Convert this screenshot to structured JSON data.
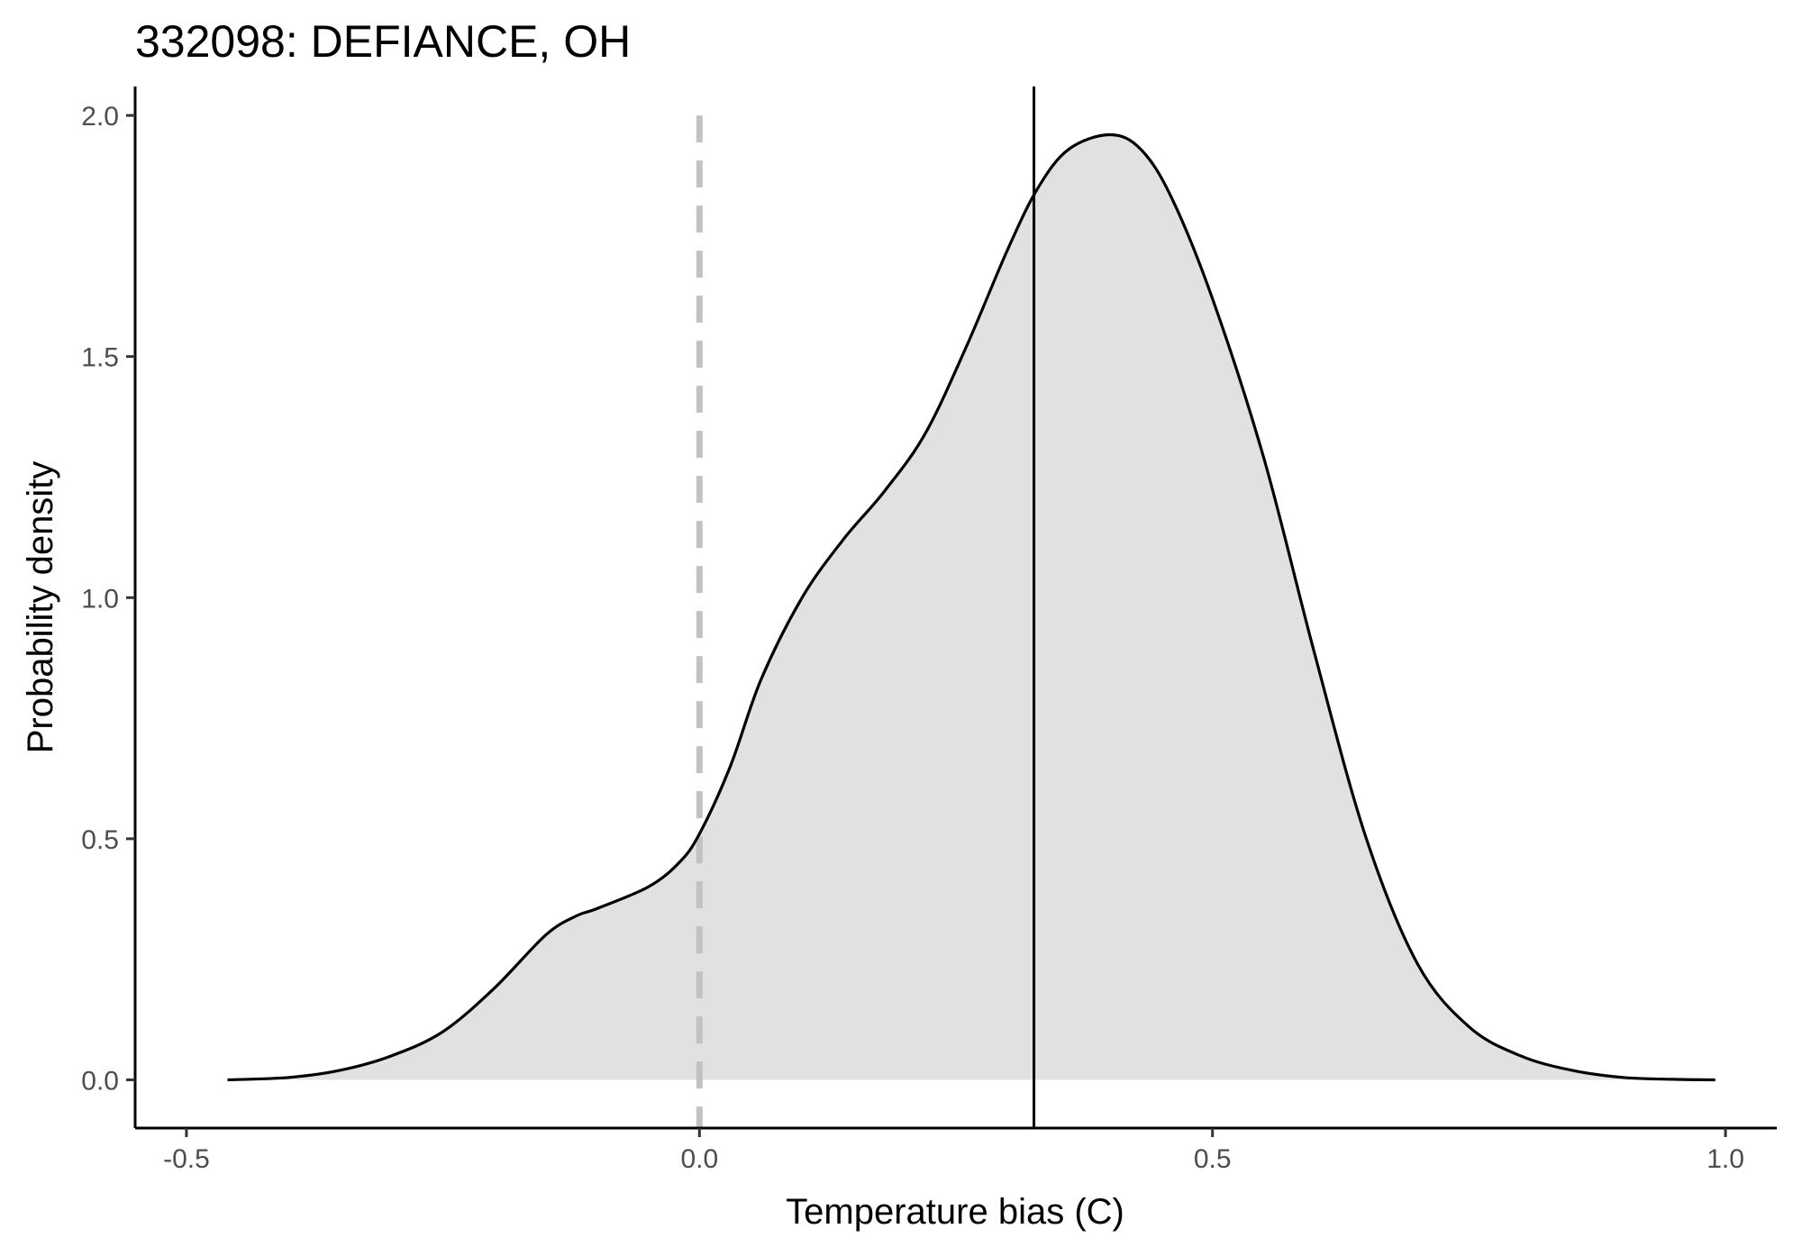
{
  "chart_data": {
    "type": "area",
    "title": "332098: DEFIANCE, OH",
    "xlabel": "Temperature bias (C)",
    "ylabel": "Probability density",
    "xlim": [
      -0.55,
      1.05
    ],
    "ylim": [
      -0.1,
      2.06
    ],
    "x_ticks": [
      -0.5,
      0.0,
      0.5,
      1.0
    ],
    "x_tick_labels": [
      "-0.5",
      "0.0",
      "0.5",
      "1.0"
    ],
    "y_ticks": [
      0.0,
      0.5,
      1.0,
      1.5,
      2.0
    ],
    "y_tick_labels": [
      "0.0",
      "0.5",
      "1.0",
      "1.5",
      "2.0"
    ],
    "grid": false,
    "fill_color": "#dfe1e3",
    "line_color": "#000000",
    "zero_line_color": "#c2c2c2",
    "reference_lines": {
      "zero_dashed_x": 0.0,
      "solid_x": 0.326
    },
    "x": [
      -0.46,
      -0.4,
      -0.35,
      -0.3,
      -0.25,
      -0.2,
      -0.15,
      -0.12,
      -0.1,
      -0.05,
      -0.02,
      0.0,
      0.03,
      0.06,
      0.1,
      0.14,
      0.18,
      0.22,
      0.26,
      0.3,
      0.33,
      0.36,
      0.4,
      0.43,
      0.46,
      0.5,
      0.55,
      0.6,
      0.65,
      0.7,
      0.75,
      0.8,
      0.85,
      0.9,
      0.95,
      0.99
    ],
    "y": [
      0.0,
      0.005,
      0.02,
      0.05,
      0.1,
      0.19,
      0.3,
      0.34,
      0.355,
      0.4,
      0.45,
      0.51,
      0.65,
      0.83,
      1.0,
      1.12,
      1.22,
      1.34,
      1.52,
      1.72,
      1.85,
      1.93,
      1.96,
      1.93,
      1.83,
      1.62,
      1.29,
      0.88,
      0.5,
      0.24,
      0.11,
      0.05,
      0.02,
      0.005,
      0.001,
      0.0
    ]
  }
}
